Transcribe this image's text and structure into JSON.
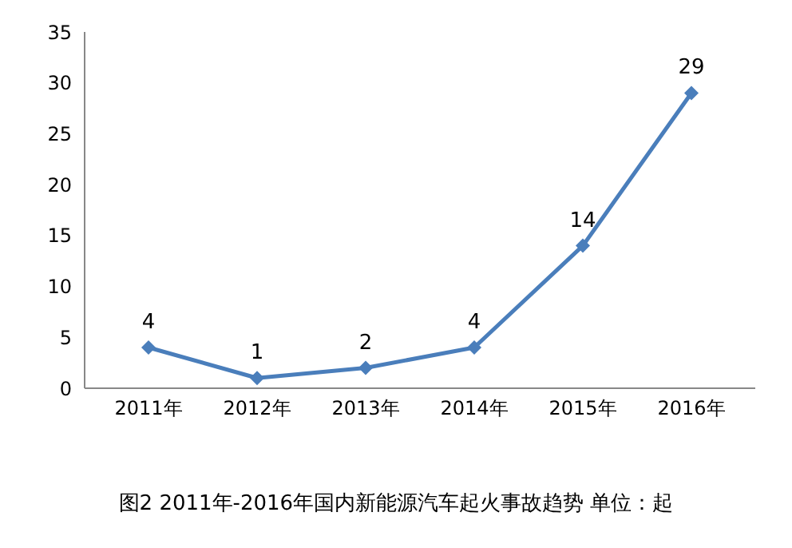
{
  "chart_data": {
    "type": "line",
    "title": "图2 2011年-2016年国内新能源汽车起火事故趋势 单位：起",
    "categories": [
      "2011年",
      "2012年",
      "2013年",
      "2014年",
      "2015年",
      "2016年"
    ],
    "series": [
      {
        "color": "#4a7ebb",
        "values": [
          4,
          1,
          2,
          4,
          14,
          29
        ]
      }
    ],
    "ylim": [
      0,
      35
    ],
    "yticks": [
      0,
      5,
      10,
      15,
      20,
      25,
      30,
      35
    ],
    "data_labels": true,
    "marker": "diamond",
    "line_style": "solid",
    "grid": false,
    "legend": false
  }
}
